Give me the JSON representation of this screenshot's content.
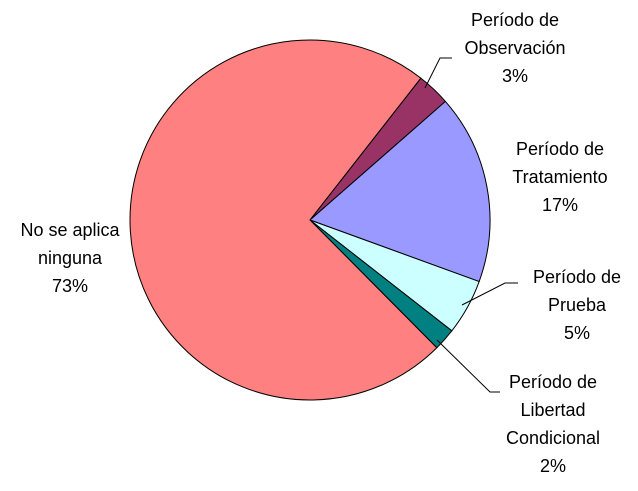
{
  "chart_data": {
    "type": "pie",
    "categories": [
      "Período de Observación",
      "Período de Tratamiento",
      "Período de Prueba",
      "Período de Libertad Condicional",
      "No se aplica ninguna"
    ],
    "values": [
      3,
      17,
      5,
      2,
      73
    ],
    "value_labels": [
      "3%",
      "17%",
      "5%",
      "2%",
      "73%"
    ],
    "colors": [
      "#993366",
      "#9999ff",
      "#ccffff",
      "#008080",
      "#ff8080"
    ]
  }
}
